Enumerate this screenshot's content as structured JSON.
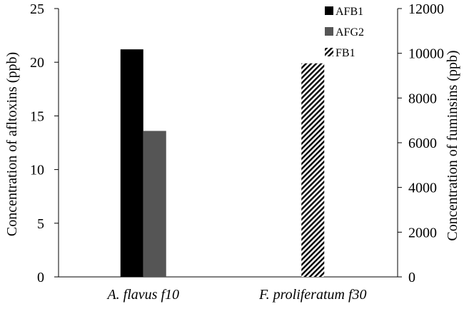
{
  "chart_data": {
    "type": "bar",
    "categories": [
      "A. flavus f10",
      "F. proliferatum f30"
    ],
    "series": [
      {
        "name": "AFB1",
        "axis": "left",
        "values": [
          21.2,
          null
        ],
        "color": "#000000",
        "pattern": "solid"
      },
      {
        "name": "AFG2",
        "axis": "left",
        "values": [
          13.6,
          null
        ],
        "color": "#555555",
        "pattern": "solid"
      },
      {
        "name": "FB1",
        "axis": "right",
        "values": [
          null,
          9550
        ],
        "color": "#000000",
        "pattern": "diagonal-hatch"
      }
    ],
    "y_left": {
      "label": "Concentration of afltoxins (ppb)",
      "lim": [
        0,
        25
      ],
      "ticks": [
        0,
        5,
        10,
        15,
        20,
        25
      ]
    },
    "y_right": {
      "label": "Concentration of fuminsins (ppb)",
      "lim": [
        0,
        12000
      ],
      "ticks": [
        0,
        2000,
        4000,
        6000,
        8000,
        10000,
        12000
      ]
    },
    "legend_position": "top-right",
    "grid": false
  }
}
